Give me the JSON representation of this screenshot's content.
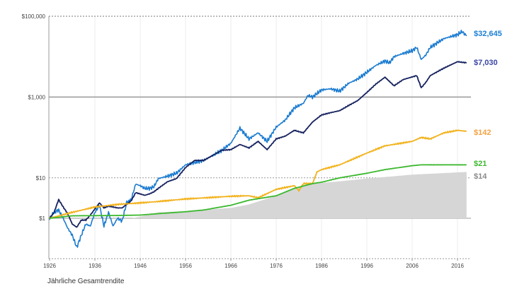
{
  "chart_data": {
    "type": "line",
    "title": "",
    "xlabel": "",
    "ylabel": "",
    "yscale": "log",
    "xlim": [
      1926,
      2018
    ],
    "ylim": [
      0.1,
      100000
    ],
    "grid": true,
    "y_ticks": [
      {
        "value": 100000,
        "label": "$100,000"
      },
      {
        "value": 1000,
        "label": "$1,000"
      },
      {
        "value": 10,
        "label": "$10"
      },
      {
        "value": 1,
        "label": "$1"
      }
    ],
    "x_ticks": [
      {
        "value": 1926,
        "label": "1926"
      },
      {
        "value": 1936,
        "label": "1936"
      },
      {
        "value": 1946,
        "label": "1946"
      },
      {
        "value": 1956,
        "label": "1956"
      },
      {
        "value": 1966,
        "label": "1966"
      },
      {
        "value": 1976,
        "label": "1976"
      },
      {
        "value": 1986,
        "label": "1986"
      },
      {
        "value": 1996,
        "label": "1996"
      },
      {
        "value": 2006,
        "label": "2006"
      },
      {
        "value": 2016,
        "label": "2016"
      }
    ],
    "series": [
      {
        "end_label": "$32,645",
        "color": "#1a7bd0",
        "label_color": "#1a7fd4",
        "kind": "line",
        "points": [
          [
            1926,
            1
          ],
          [
            1927,
            1.4
          ],
          [
            1928,
            1.6
          ],
          [
            1929,
            1
          ],
          [
            1930,
            0.57
          ],
          [
            1931,
            0.38
          ],
          [
            1932,
            0.19
          ],
          [
            1933,
            0.38
          ],
          [
            1934,
            0.72
          ],
          [
            1935,
            0.64
          ],
          [
            1936,
            1.4
          ],
          [
            1937,
            2.1
          ],
          [
            1938,
            0.64
          ],
          [
            1939,
            1.4
          ],
          [
            1940,
            0.64
          ],
          [
            1941,
            1
          ],
          [
            1942,
            0.85
          ],
          [
            1943,
            2.4
          ],
          [
            1944,
            2.9
          ],
          [
            1945,
            7
          ],
          [
            1946,
            6.4
          ],
          [
            1947,
            5.5
          ],
          [
            1948,
            5.5
          ],
          [
            1949,
            6
          ],
          [
            1950,
            9.6
          ],
          [
            1952,
            11
          ],
          [
            1954,
            13
          ],
          [
            1956,
            21
          ],
          [
            1958,
            24
          ],
          [
            1960,
            27
          ],
          [
            1962,
            36
          ],
          [
            1964,
            48
          ],
          [
            1966,
            72
          ],
          [
            1968,
            170
          ],
          [
            1970,
            92
          ],
          [
            1972,
            130
          ],
          [
            1974,
            80
          ],
          [
            1976,
            180
          ],
          [
            1978,
            270
          ],
          [
            1980,
            540
          ],
          [
            1982,
            700
          ],
          [
            1983,
            1100
          ],
          [
            1984,
            1000
          ],
          [
            1986,
            1500
          ],
          [
            1988,
            1600
          ],
          [
            1990,
            1400
          ],
          [
            1992,
            2200
          ],
          [
            1994,
            2800
          ],
          [
            1996,
            4100
          ],
          [
            1998,
            6100
          ],
          [
            2000,
            7800
          ],
          [
            2001,
            7000
          ],
          [
            2002,
            10000
          ],
          [
            2004,
            12000
          ],
          [
            2006,
            14000
          ],
          [
            2007,
            17000
          ],
          [
            2008,
            8500
          ],
          [
            2009,
            11000
          ],
          [
            2010,
            17000
          ],
          [
            2013,
            28000
          ],
          [
            2016,
            35000
          ],
          [
            2017,
            42000
          ],
          [
            2018,
            32645
          ]
        ]
      },
      {
        "end_label": "$7,030",
        "color": "#15215e",
        "label_color": "#3b46a6",
        "kind": "line",
        "points": [
          [
            1926,
            1
          ],
          [
            1927,
            1.4
          ],
          [
            1928,
            2.9
          ],
          [
            1929,
            1.9
          ],
          [
            1930,
            1.3
          ],
          [
            1931,
            0.72
          ],
          [
            1932,
            0.6
          ],
          [
            1933,
            0.9
          ],
          [
            1934,
            0.9
          ],
          [
            1935,
            1.2
          ],
          [
            1936,
            1.7
          ],
          [
            1937,
            2.4
          ],
          [
            1938,
            1.8
          ],
          [
            1939,
            2
          ],
          [
            1940,
            1.9
          ],
          [
            1941,
            1.8
          ],
          [
            1942,
            1.8
          ],
          [
            1943,
            2.2
          ],
          [
            1944,
            2.7
          ],
          [
            1945,
            4.3
          ],
          [
            1946,
            4
          ],
          [
            1947,
            3.7
          ],
          [
            1948,
            4
          ],
          [
            1949,
            4.5
          ],
          [
            1950,
            5.5
          ],
          [
            1952,
            8
          ],
          [
            1954,
            9.6
          ],
          [
            1956,
            18
          ],
          [
            1958,
            27
          ],
          [
            1960,
            27
          ],
          [
            1962,
            36
          ],
          [
            1964,
            48
          ],
          [
            1966,
            50
          ],
          [
            1968,
            67
          ],
          [
            1970,
            55
          ],
          [
            1972,
            80
          ],
          [
            1974,
            50
          ],
          [
            1976,
            92
          ],
          [
            1978,
            108
          ],
          [
            1980,
            150
          ],
          [
            1982,
            130
          ],
          [
            1984,
            240
          ],
          [
            1986,
            360
          ],
          [
            1988,
            410
          ],
          [
            1990,
            460
          ],
          [
            1992,
            620
          ],
          [
            1994,
            820
          ],
          [
            1996,
            1300
          ],
          [
            1998,
            2100
          ],
          [
            2000,
            3100
          ],
          [
            2002,
            1900
          ],
          [
            2004,
            2700
          ],
          [
            2007,
            3400
          ],
          [
            2008,
            1700
          ],
          [
            2009,
            2300
          ],
          [
            2010,
            3400
          ],
          [
            2013,
            5200
          ],
          [
            2016,
            7500
          ],
          [
            2018,
            7030
          ]
        ]
      },
      {
        "end_label": "$142",
        "color": "#f2b21c",
        "label_color": "#f5a142",
        "kind": "line",
        "points": [
          [
            1926,
            1
          ],
          [
            1931,
            1.4
          ],
          [
            1936,
            1.9
          ],
          [
            1941,
            2.2
          ],
          [
            1946,
            2.4
          ],
          [
            1950,
            2.6
          ],
          [
            1956,
            3
          ],
          [
            1966,
            3.5
          ],
          [
            1970,
            3.6
          ],
          [
            1972,
            3.2
          ],
          [
            1976,
            5.2
          ],
          [
            1980,
            6.4
          ],
          [
            1981,
            4.8
          ],
          [
            1982,
            7.2
          ],
          [
            1984,
            7.2
          ],
          [
            1985,
            14
          ],
          [
            1986,
            16
          ],
          [
            1990,
            21
          ],
          [
            1996,
            41
          ],
          [
            2000,
            62
          ],
          [
            2006,
            80
          ],
          [
            2008,
            100
          ],
          [
            2010,
            92
          ],
          [
            2013,
            130
          ],
          [
            2016,
            150
          ],
          [
            2018,
            142
          ]
        ]
      },
      {
        "end_label": "$21",
        "color": "#3cb82e",
        "label_color": "#3cb82e",
        "kind": "line",
        "points": [
          [
            1926,
            1
          ],
          [
            1931,
            1.15
          ],
          [
            1941,
            1.17
          ],
          [
            1946,
            1.2
          ],
          [
            1950,
            1.3
          ],
          [
            1956,
            1.45
          ],
          [
            1960,
            1.6
          ],
          [
            1966,
            2.1
          ],
          [
            1970,
            2.8
          ],
          [
            1976,
            3.6
          ],
          [
            1980,
            5.5
          ],
          [
            1984,
            7.2
          ],
          [
            1986,
            7.8
          ],
          [
            1990,
            10
          ],
          [
            1996,
            13
          ],
          [
            2000,
            16
          ],
          [
            2006,
            20
          ],
          [
            2008,
            21
          ],
          [
            2016,
            21
          ],
          [
            2018,
            21
          ]
        ]
      },
      {
        "end_label": "$14",
        "color": "#d6d6d6",
        "label_color": "#8a8a8a",
        "kind": "area",
        "points": [
          [
            1926,
            1
          ],
          [
            1932,
            0.8
          ],
          [
            1940,
            0.8
          ],
          [
            1946,
            1.1
          ],
          [
            1950,
            1.4
          ],
          [
            1956,
            1.5
          ],
          [
            1966,
            1.8
          ],
          [
            1970,
            2.2
          ],
          [
            1976,
            3.6
          ],
          [
            1980,
            5.5
          ],
          [
            1984,
            7.2
          ],
          [
            1990,
            8.2
          ],
          [
            1996,
            9.6
          ],
          [
            2006,
            12
          ],
          [
            2018,
            14
          ]
        ]
      }
    ]
  },
  "caption": "Jährliche Gesamtrendite"
}
